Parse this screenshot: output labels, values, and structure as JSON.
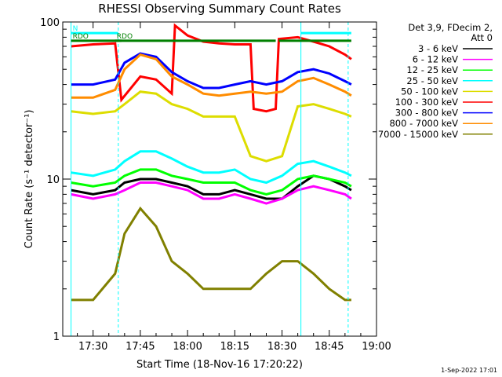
{
  "chart_data": {
    "type": "line",
    "title": "RHESSI Observing Summary Count Rates",
    "xlabel": "Start Time (18-Nov-16 17:20:22)",
    "ylabel": "Count Rate (s⁻¹ detector⁻¹)",
    "xscale": "time (minutes from 17:20:22)",
    "xlim": [
      "17:20:22",
      "19:00:00"
    ],
    "ylim": [
      1,
      100
    ],
    "yscale": "log",
    "x_ticks": [
      "17:30",
      "17:45",
      "18:00",
      "18:15",
      "18:30",
      "18:45",
      "19:00"
    ],
    "y_ticks": [
      "1",
      "10",
      "100"
    ],
    "legend_header": [
      "Det 3,9, FDecim 2,",
      "Att 0"
    ],
    "legend_position": "right",
    "timestamp": "1-Sep-2022 17:01",
    "series": [
      {
        "name": "3 - 6 keV",
        "color": "#000000",
        "points": [
          [
            "17:23",
            8.5
          ],
          [
            "17:30",
            8.0
          ],
          [
            "17:37",
            8.5
          ],
          [
            "17:40",
            9.5
          ],
          [
            "17:45",
            10.0
          ],
          [
            "17:50",
            10.0
          ],
          [
            "17:55",
            9.5
          ],
          [
            "18:00",
            9.0
          ],
          [
            "18:05",
            8.0
          ],
          [
            "18:10",
            8.0
          ],
          [
            "18:15",
            8.5
          ],
          [
            "18:20",
            8.0
          ],
          [
            "18:25",
            7.5
          ],
          [
            "18:30",
            7.5
          ],
          [
            "18:35",
            9.0
          ],
          [
            "18:40",
            10.5
          ],
          [
            "18:45",
            10.0
          ],
          [
            "18:50",
            9.0
          ],
          [
            "18:52",
            8.5
          ]
        ]
      },
      {
        "name": "6 - 12 keV",
        "color": "#ff00ff",
        "points": [
          [
            "17:23",
            8.0
          ],
          [
            "17:30",
            7.5
          ],
          [
            "17:37",
            8.0
          ],
          [
            "17:40",
            8.5
          ],
          [
            "17:45",
            9.5
          ],
          [
            "17:50",
            9.5
          ],
          [
            "17:55",
            9.0
          ],
          [
            "18:00",
            8.5
          ],
          [
            "18:05",
            7.5
          ],
          [
            "18:10",
            7.5
          ],
          [
            "18:15",
            8.0
          ],
          [
            "18:20",
            7.5
          ],
          [
            "18:25",
            7.0
          ],
          [
            "18:30",
            7.5
          ],
          [
            "18:35",
            8.5
          ],
          [
            "18:40",
            9.0
          ],
          [
            "18:45",
            8.5
          ],
          [
            "18:50",
            8.0
          ],
          [
            "18:52",
            7.5
          ]
        ]
      },
      {
        "name": "12 - 25 keV",
        "color": "#00ff00",
        "points": [
          [
            "17:23",
            9.5
          ],
          [
            "17:30",
            9.0
          ],
          [
            "17:37",
            9.5
          ],
          [
            "17:40",
            10.5
          ],
          [
            "17:45",
            11.5
          ],
          [
            "17:50",
            11.5
          ],
          [
            "17:55",
            10.5
          ],
          [
            "18:00",
            10.0
          ],
          [
            "18:05",
            9.5
          ],
          [
            "18:10",
            9.5
          ],
          [
            "18:15",
            9.5
          ],
          [
            "18:20",
            8.5
          ],
          [
            "18:25",
            8.0
          ],
          [
            "18:30",
            8.5
          ],
          [
            "18:35",
            10.0
          ],
          [
            "18:40",
            10.5
          ],
          [
            "18:45",
            10.0
          ],
          [
            "18:50",
            9.5
          ],
          [
            "18:52",
            9.0
          ]
        ]
      },
      {
        "name": "25 - 50 keV",
        "color": "#00ffff",
        "points": [
          [
            "17:23",
            11.0
          ],
          [
            "17:30",
            10.5
          ],
          [
            "17:37",
            11.5
          ],
          [
            "17:40",
            13.0
          ],
          [
            "17:45",
            15.0
          ],
          [
            "17:50",
            15.0
          ],
          [
            "17:55",
            13.5
          ],
          [
            "18:00",
            12.0
          ],
          [
            "18:05",
            11.0
          ],
          [
            "18:10",
            11.0
          ],
          [
            "18:15",
            11.5
          ],
          [
            "18:20",
            10.0
          ],
          [
            "18:25",
            9.5
          ],
          [
            "18:30",
            10.5
          ],
          [
            "18:35",
            12.5
          ],
          [
            "18:40",
            13.0
          ],
          [
            "18:45",
            12.0
          ],
          [
            "18:50",
            11.0
          ],
          [
            "18:52",
            10.5
          ]
        ]
      },
      {
        "name": "50 - 100 keV",
        "color": "#dddd00",
        "points": [
          [
            "17:23",
            27.0
          ],
          [
            "17:30",
            26.0
          ],
          [
            "17:37",
            27.0
          ],
          [
            "17:40",
            30.0
          ],
          [
            "17:45",
            36.0
          ],
          [
            "17:50",
            35.0
          ],
          [
            "17:55",
            30.0
          ],
          [
            "18:00",
            28.0
          ],
          [
            "18:05",
            25.0
          ],
          [
            "18:10",
            25.0
          ],
          [
            "18:15",
            25.0
          ],
          [
            "18:20",
            14.0
          ],
          [
            "18:25",
            13.0
          ],
          [
            "18:30",
            14.0
          ],
          [
            "18:35",
            29.0
          ],
          [
            "18:40",
            30.0
          ],
          [
            "18:45",
            28.0
          ],
          [
            "18:50",
            26.0
          ],
          [
            "18:52",
            25.0
          ]
        ]
      },
      {
        "name": "100 - 300 keV",
        "color": "#ff0000",
        "points": [
          [
            "17:23",
            70.0
          ],
          [
            "17:30",
            72.0
          ],
          [
            "17:37",
            73.0
          ],
          [
            "17:39",
            32.0
          ],
          [
            "17:45",
            45.0
          ],
          [
            "17:50",
            43.0
          ],
          [
            "17:55",
            35.0
          ],
          [
            "17:56",
            95.0
          ],
          [
            "18:00",
            82.0
          ],
          [
            "18:05",
            75.0
          ],
          [
            "18:10",
            73.0
          ],
          [
            "18:15",
            72.0
          ],
          [
            "18:20",
            72.0
          ],
          [
            "18:21",
            28.0
          ],
          [
            "18:25",
            27.0
          ],
          [
            "18:28",
            28.0
          ],
          [
            "18:29",
            78.0
          ],
          [
            "18:35",
            80.0
          ],
          [
            "18:40",
            75.0
          ],
          [
            "18:45",
            70.0
          ],
          [
            "18:50",
            62.0
          ],
          [
            "18:52",
            58.0
          ]
        ]
      },
      {
        "name": "300 - 800 keV",
        "color": "#0000ff",
        "points": [
          [
            "17:23",
            40.0
          ],
          [
            "17:30",
            40.0
          ],
          [
            "17:37",
            43.0
          ],
          [
            "17:40",
            55.0
          ],
          [
            "17:45",
            63.0
          ],
          [
            "17:50",
            60.0
          ],
          [
            "17:55",
            48.0
          ],
          [
            "18:00",
            42.0
          ],
          [
            "18:05",
            38.0
          ],
          [
            "18:10",
            38.0
          ],
          [
            "18:15",
            40.0
          ],
          [
            "18:20",
            42.0
          ],
          [
            "18:25",
            40.0
          ],
          [
            "18:30",
            42.0
          ],
          [
            "18:35",
            48.0
          ],
          [
            "18:40",
            50.0
          ],
          [
            "18:45",
            47.0
          ],
          [
            "18:50",
            42.0
          ],
          [
            "18:52",
            40.0
          ]
        ]
      },
      {
        "name": "800 - 7000 keV",
        "color": "#ff8c00",
        "points": [
          [
            "17:23",
            33.0
          ],
          [
            "17:30",
            33.0
          ],
          [
            "17:37",
            37.0
          ],
          [
            "17:40",
            50.0
          ],
          [
            "17:45",
            62.0
          ],
          [
            "17:50",
            58.0
          ],
          [
            "17:55",
            45.0
          ],
          [
            "18:00",
            40.0
          ],
          [
            "18:05",
            35.0
          ],
          [
            "18:10",
            34.0
          ],
          [
            "18:15",
            35.0
          ],
          [
            "18:20",
            36.0
          ],
          [
            "18:25",
            35.0
          ],
          [
            "18:30",
            36.0
          ],
          [
            "18:35",
            42.0
          ],
          [
            "18:40",
            44.0
          ],
          [
            "18:45",
            40.0
          ],
          [
            "18:50",
            36.0
          ],
          [
            "18:52",
            34.0
          ]
        ]
      },
      {
        "name": "7000 - 15000 keV",
        "color": "#808000",
        "points": [
          [
            "17:23",
            1.7
          ],
          [
            "17:30",
            1.7
          ],
          [
            "17:37",
            2.5
          ],
          [
            "17:40",
            4.5
          ],
          [
            "17:45",
            6.5
          ],
          [
            "17:50",
            5.0
          ],
          [
            "17:55",
            3.0
          ],
          [
            "18:00",
            2.5
          ],
          [
            "18:05",
            2.0
          ],
          [
            "18:10",
            2.0
          ],
          [
            "18:15",
            2.0
          ],
          [
            "18:20",
            2.0
          ],
          [
            "18:25",
            2.5
          ],
          [
            "18:30",
            3.0
          ],
          [
            "18:35",
            3.0
          ],
          [
            "18:40",
            2.5
          ],
          [
            "18:45",
            2.0
          ],
          [
            "18:50",
            1.7
          ],
          [
            "18:52",
            1.7
          ]
        ]
      }
    ],
    "annotations": [
      {
        "label": "N",
        "color": "#00ffff",
        "x_start": "17:23",
        "x_end": "17:38",
        "y": 85
      },
      {
        "label": "N",
        "color": "#00ffff",
        "x_start": "18:36",
        "x_end": "18:52",
        "y": 85
      },
      {
        "label": "RDO",
        "color": "#008000",
        "x_start": "17:37",
        "x_end": "18:28",
        "y": 76
      },
      {
        "label": "RDO",
        "color": "#008000",
        "x_start": "17:23",
        "x_end": "17:39",
        "y": 76
      },
      {
        "label": "RDO",
        "color": "#008000",
        "x_start": "18:29",
        "x_end": "18:52",
        "y": 76
      }
    ],
    "annotation_labels_visible": [
      "N",
      "RDO",
      "RDO"
    ],
    "vertical_markers": [
      {
        "time": "17:23",
        "style": "solid",
        "color": "#00ffff"
      },
      {
        "time": "17:38",
        "style": "dashed",
        "color": "#00ffff"
      },
      {
        "time": "18:36",
        "style": "solid",
        "color": "#00ffff"
      },
      {
        "time": "18:51",
        "style": "dashed",
        "color": "#00ffff"
      }
    ],
    "grid": false
  }
}
